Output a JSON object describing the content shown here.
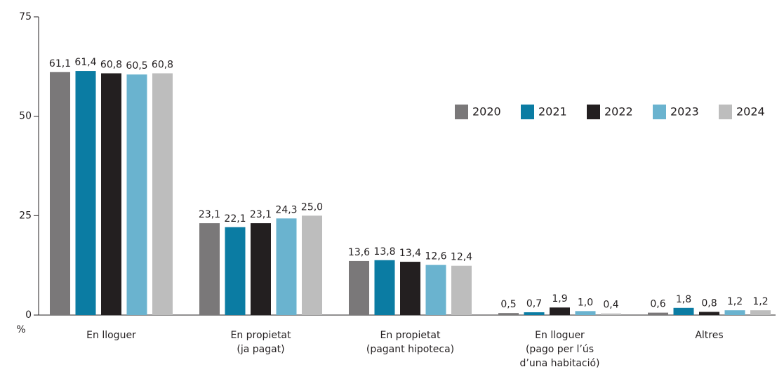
{
  "chart_data": {
    "type": "bar",
    "ylabel": "%",
    "categories": [
      [
        "En lloguer"
      ],
      [
        "En propietat",
        "(ja pagat)"
      ],
      [
        "En propietat",
        "(pagant hipoteca)"
      ],
      [
        "En lloguer",
        "(pago per l’ús",
        "d’una habitació)"
      ],
      [
        "Altres"
      ]
    ],
    "series": [
      {
        "name": "2020",
        "color": "#7a7879",
        "values": [
          61.1,
          23.1,
          13.6,
          0.5,
          0.6
        ],
        "value_labels": [
          "61,1",
          "23,1",
          "13,6",
          "0,5",
          "0,6"
        ]
      },
      {
        "name": "2021",
        "color": "#0b7ca3",
        "values": [
          61.4,
          22.1,
          13.8,
          0.7,
          1.8
        ],
        "value_labels": [
          "61,4",
          "22,1",
          "13,8",
          "0,7",
          "1,8"
        ]
      },
      {
        "name": "2022",
        "color": "#231f20",
        "values": [
          60.8,
          23.1,
          13.4,
          1.9,
          0.8
        ],
        "value_labels": [
          "60,8",
          "23,1",
          "13,4",
          "1,9",
          "0,8"
        ]
      },
      {
        "name": "2023",
        "color": "#6ab3cf",
        "values": [
          60.5,
          24.3,
          12.6,
          1.0,
          1.2
        ],
        "value_labels": [
          "60,5",
          "24,3",
          "12,6",
          "1,0",
          "1,2"
        ]
      },
      {
        "name": "2024",
        "color": "#bdbdbd",
        "values": [
          60.8,
          25.0,
          12.4,
          0.4,
          1.2
        ],
        "value_labels": [
          "60,8",
          "25,0",
          "12,4",
          "0,4",
          "1,2"
        ]
      }
    ],
    "ylim": [
      0,
      75
    ],
    "yticks": [
      0,
      25,
      50,
      75
    ],
    "grid": false,
    "legend": "right"
  }
}
